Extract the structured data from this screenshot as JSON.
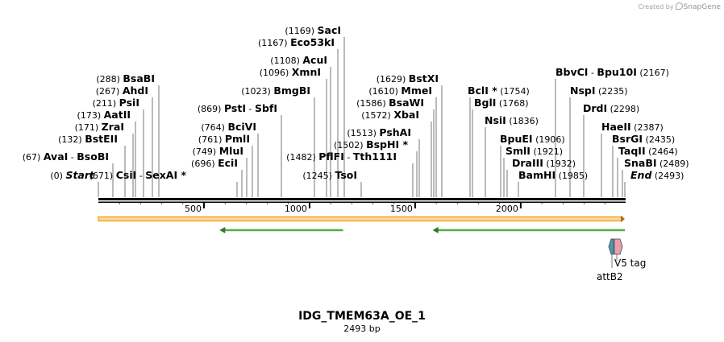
{
  "watermark": {
    "created_by": "Created by",
    "brand": "SnapGene"
  },
  "map": {
    "name": "IDG_TMEM63A_OE_1",
    "length_label": "2493 bp",
    "length": 2493
  },
  "sites": [
    {
      "pos": "(0)",
      "name": "Start",
      "italic": true
    },
    {
      "pos": "(67)",
      "name": "AvaI",
      "name2": "BsoBI"
    },
    {
      "pos": "(132)",
      "name": "BstEII"
    },
    {
      "pos": "(171)",
      "name": "ZraI"
    },
    {
      "pos": "(173)",
      "name": "AatII"
    },
    {
      "pos": "(211)",
      "name": "PsiI"
    },
    {
      "pos": "(267)",
      "name": "AhdI"
    },
    {
      "pos": "(288)",
      "name": "BsaBI"
    },
    {
      "pos": "(671)",
      "name": "CsiI",
      "name2": "SexAI *"
    },
    {
      "pos": "(696)",
      "name": "EciI"
    },
    {
      "pos": "(749)",
      "name": "MluI"
    },
    {
      "pos": "(761)",
      "name": "PmlI"
    },
    {
      "pos": "(764)",
      "name": "BciVI"
    },
    {
      "pos": "(869)",
      "name": "PstI",
      "name2": "SbfI"
    },
    {
      "pos": "(1023)",
      "name": "BmgBI"
    },
    {
      "pos": "(1096)",
      "name": "XmnI"
    },
    {
      "pos": "(1108)",
      "name": "AcuI"
    },
    {
      "pos": "(1167)",
      "name": "Eco53kI"
    },
    {
      "pos": "(1169)",
      "name": "SacI"
    },
    {
      "pos": "(1245)",
      "name": "TsoI"
    },
    {
      "pos": "(1482)",
      "name": "PflFI",
      "name2": "Tth111I"
    },
    {
      "pos": "(1502)",
      "name": "BspHI *"
    },
    {
      "pos": "(1513)",
      "name": "PshAI"
    },
    {
      "pos": "(1572)",
      "name": "XbaI"
    },
    {
      "pos": "(1586)",
      "name": "BsaWI"
    },
    {
      "pos": "(1610)",
      "name": "MmeI"
    },
    {
      "pos": "(1629)",
      "name": "BstXI"
    },
    {
      "name": "BclI *",
      "pos": "(1754)"
    },
    {
      "name": "BglI",
      "pos": "(1768)"
    },
    {
      "name": "NsiI",
      "pos": "(1836)"
    },
    {
      "name": "BpuEI",
      "pos": "(1906)"
    },
    {
      "name": "SmlI",
      "pos": "(1921)"
    },
    {
      "name": "DraIII",
      "pos": "(1932)"
    },
    {
      "name": "BamHI",
      "pos": "(1985)"
    },
    {
      "name": "BbvCI",
      "name2": "Bpu10I",
      "pos": "(2167)"
    },
    {
      "name": "NspI",
      "pos": "(2235)"
    },
    {
      "name": "DrdI",
      "pos": "(2298)"
    },
    {
      "name": "HaeII",
      "pos": "(2387)"
    },
    {
      "name": "BsrGI",
      "pos": "(2435)"
    },
    {
      "name": "TaqII",
      "pos": "(2464)"
    },
    {
      "name": "SnaBI",
      "pos": "(2489)"
    },
    {
      "name": "End",
      "pos": "(2493)",
      "italic": true
    }
  ],
  "ruler": {
    "ticks": [
      "500",
      "1000",
      "1500",
      "2000"
    ]
  },
  "features": {
    "orf_main": {
      "color": "#f5a623",
      "fill": "#f8d9a0",
      "start": 0,
      "end": 2493,
      "direction": "forward"
    },
    "orf_left": {
      "color": "#52b043",
      "start": 574,
      "end": 1159,
      "direction": "reverse"
    },
    "orf_right": {
      "color": "#52b043",
      "start": 1583,
      "end": 2493,
      "direction": "reverse"
    },
    "v5_tag": {
      "label": "V5 tag",
      "color": "#e8a0b0"
    },
    "attb2": {
      "label": "attB2",
      "color": "#4a9ab0"
    }
  }
}
